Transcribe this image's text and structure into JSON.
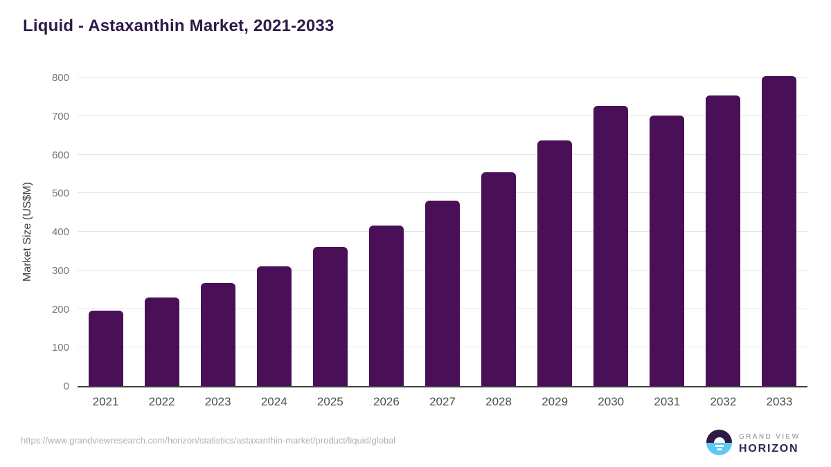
{
  "header": {
    "title": "Liquid - Astaxanthin Market, 2021-2033"
  },
  "chart_data": {
    "type": "bar",
    "title": "Liquid - Astaxanthin Market, 2021-2033",
    "categories": [
      "2021",
      "2022",
      "2023",
      "2024",
      "2025",
      "2026",
      "2027",
      "2028",
      "2029",
      "2030",
      "2031",
      "2032",
      "2033"
    ],
    "values": [
      195,
      230,
      267,
      310,
      361,
      416,
      481,
      554,
      637,
      727,
      702,
      753,
      804
    ],
    "xlabel": "",
    "ylabel": "Market Size (US$M)",
    "ylim": [
      0,
      800
    ],
    "ytick_step": 100,
    "ytick_labels": [
      "0",
      "100",
      "200",
      "300",
      "400",
      "500",
      "600",
      "700",
      "800"
    ],
    "grid": "horizontal-only",
    "legend": "none",
    "bar_color": "#491058",
    "gridline_color": "#e4e4e4",
    "axis_line_color": "#3f3f3f"
  },
  "footer": {
    "source_url": "https://www.grandviewresearch.com/horizon/statistics/astaxanthin-market/product/liquid/global",
    "logo": {
      "icon": "grand-view-horizon-logo-icon",
      "top_text": "GRAND VIEW",
      "bottom_text": "HORIZON",
      "purple": "#2d1a45",
      "blue": "#5ec8f2"
    }
  }
}
